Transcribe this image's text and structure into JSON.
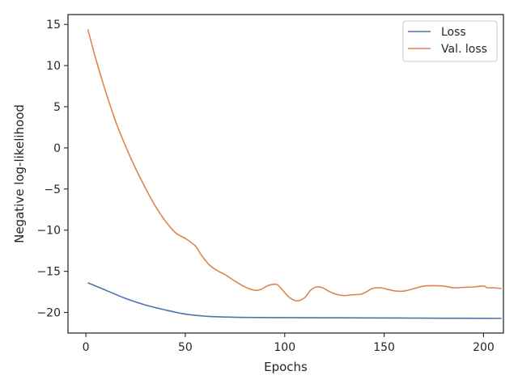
{
  "chart_data": {
    "type": "line",
    "xlabel": "Epochs",
    "ylabel": "Negative log-likelihood",
    "xlim": [
      -9,
      210
    ],
    "ylim": [
      -22.5,
      16.2
    ],
    "x_ticks": [
      0,
      50,
      100,
      150,
      200
    ],
    "y_ticks": [
      15,
      10,
      5,
      0,
      -5,
      -10,
      -15,
      -20
    ],
    "x_tick_labels": [
      "0",
      "50",
      "100",
      "150",
      "200"
    ],
    "y_tick_labels": [
      "15",
      "10",
      "5",
      "0",
      "−5",
      "−10",
      "−15",
      "−20"
    ],
    "grid": false,
    "legend_position": "top-right",
    "series": [
      {
        "name": "Loss",
        "color": "#4c72b0",
        "x": [
          1,
          10,
          20,
          30,
          40,
          50,
          60,
          70,
          80,
          90,
          100,
          120,
          140,
          160,
          180,
          200,
          209
        ],
        "y": [
          -16.4,
          -17.3,
          -18.3,
          -19.1,
          -19.7,
          -20.2,
          -20.45,
          -20.55,
          -20.6,
          -20.62,
          -20.63,
          -20.65,
          -20.66,
          -20.68,
          -20.7,
          -20.71,
          -20.72
        ]
      },
      {
        "name": "Val. loss",
        "color": "#dd8452",
        "x": [
          1,
          5,
          10,
          15,
          20,
          25,
          30,
          35,
          40,
          45,
          50,
          55,
          58,
          62,
          66,
          70,
          75,
          80,
          85,
          88,
          92,
          96,
          99,
          102,
          106,
          110,
          113,
          116,
          119,
          122,
          126,
          130,
          134,
          138,
          141,
          144,
          148,
          152,
          156,
          160,
          165,
          170,
          175,
          180,
          185,
          190,
          195,
          200,
          202,
          205,
          209
        ],
        "y": [
          14.4,
          10.8,
          6.8,
          3.2,
          0.2,
          -2.5,
          -4.9,
          -7.1,
          -8.9,
          -10.3,
          -11.0,
          -11.9,
          -13.0,
          -14.2,
          -14.9,
          -15.4,
          -16.2,
          -16.9,
          -17.3,
          -17.2,
          -16.7,
          -16.6,
          -17.3,
          -18.1,
          -18.6,
          -18.2,
          -17.3,
          -16.9,
          -17.0,
          -17.4,
          -17.8,
          -17.95,
          -17.85,
          -17.8,
          -17.5,
          -17.1,
          -17.0,
          -17.2,
          -17.4,
          -17.4,
          -17.1,
          -16.8,
          -16.75,
          -16.8,
          -17.0,
          -16.95,
          -16.9,
          -16.8,
          -17.0,
          -17.0,
          -17.1
        ]
      }
    ]
  }
}
